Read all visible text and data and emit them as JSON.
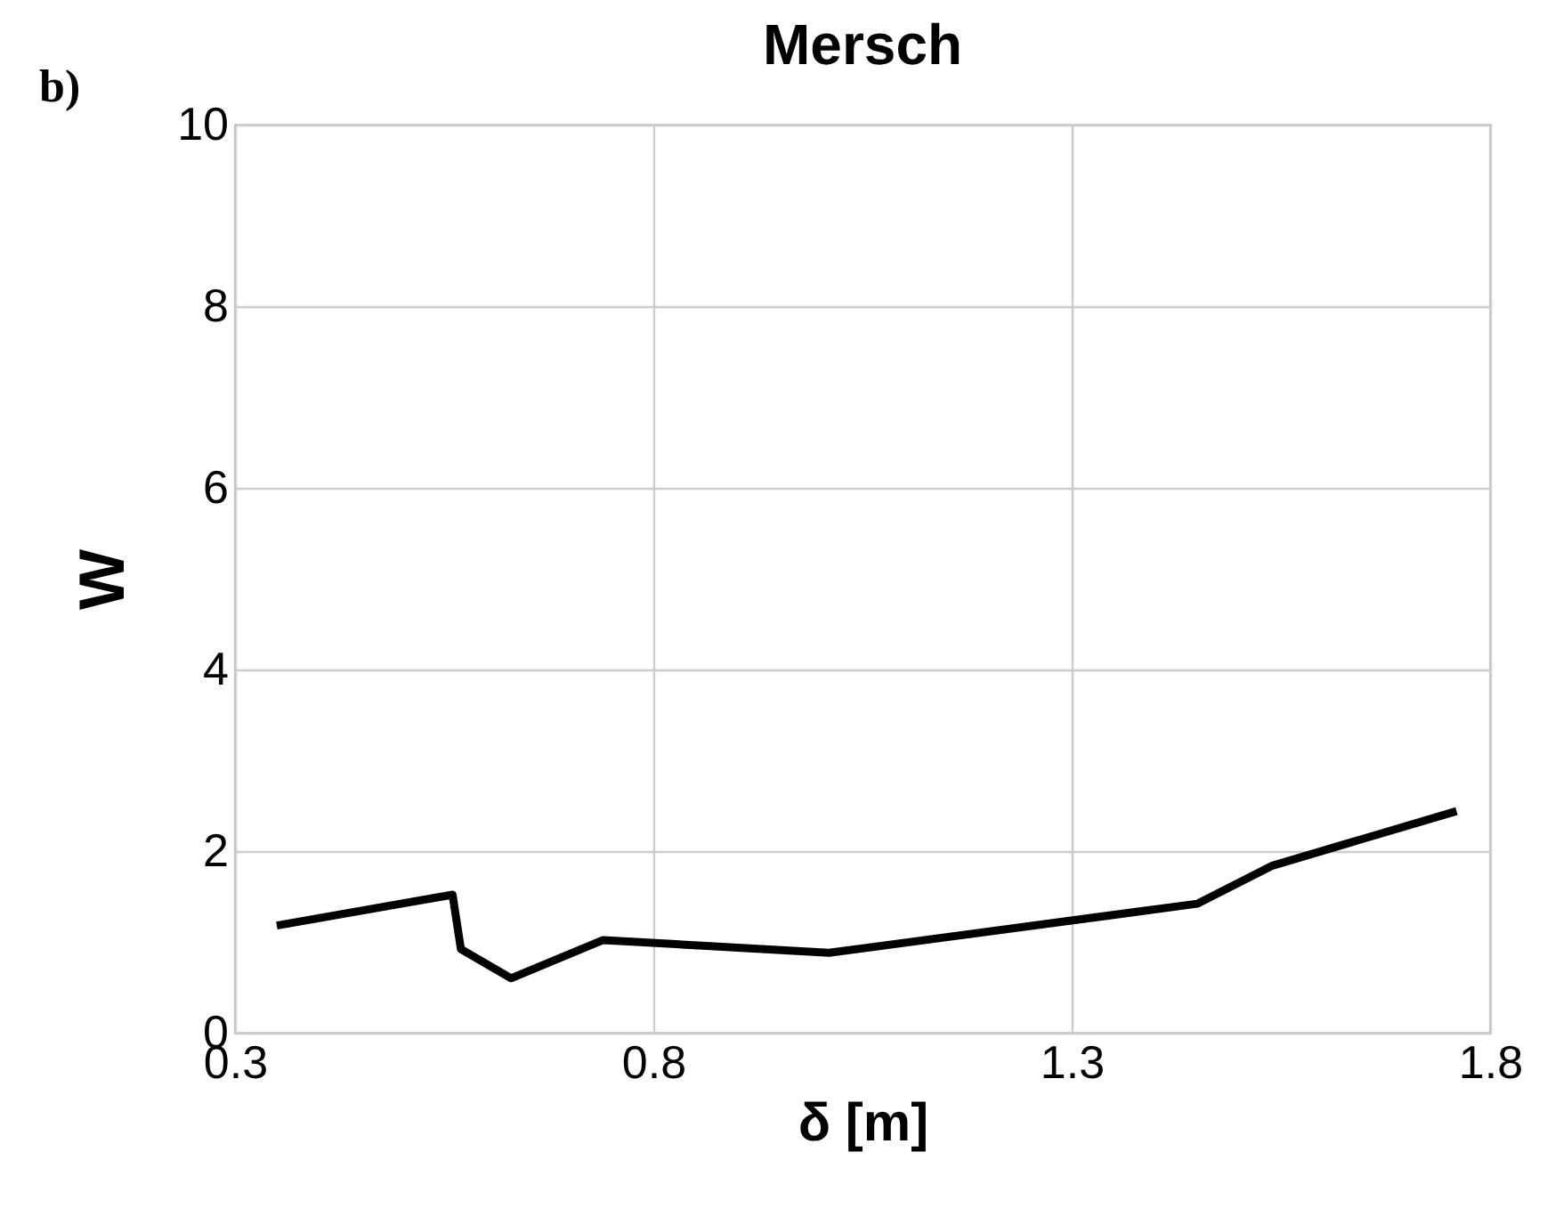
{
  "chart_data": {
    "type": "line",
    "title": "Mersch",
    "xlabel": "δ [m]",
    "ylabel": "W",
    "annotations": [
      "b)"
    ],
    "x": [
      0.35,
      0.56,
      0.57,
      0.63,
      0.74,
      1.01,
      1.45,
      1.54,
      1.76
    ],
    "series": [
      {
        "color": "#000000",
        "values": [
          1.18,
          1.52,
          0.92,
          0.6,
          1.02,
          0.88,
          1.42,
          1.84,
          2.44
        ]
      }
    ],
    "xlim": [
      0.3,
      1.8
    ],
    "xticks": [
      0.3,
      0.8,
      1.3,
      1.8
    ],
    "ylim": [
      0,
      10
    ],
    "yticks": [
      0,
      2,
      4,
      6,
      8,
      10
    ],
    "grid": true,
    "marker": "none",
    "line_style": "solid"
  }
}
